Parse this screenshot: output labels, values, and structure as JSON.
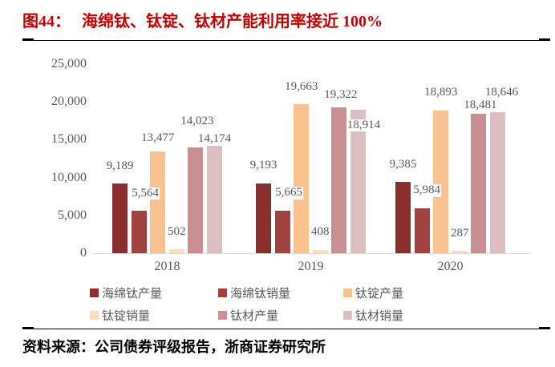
{
  "title": {
    "fig_label": "图44：",
    "text": "海绵钛、钛锭、钛材产能利用率接近 100%",
    "color": "#c00000"
  },
  "source_line": "资料来源：公司债券评级报告，浙商证券研究所",
  "colors": {
    "title_red": "#c00000",
    "axis_text": "#595959",
    "axis_line": "#d9d9d9",
    "rule_black": "#000000"
  },
  "chart_data": {
    "type": "bar",
    "categories": [
      "2018",
      "2019",
      "2020"
    ],
    "series": [
      {
        "name": "海绵钛产量",
        "color": "#8a2e2e",
        "values": [
          9189,
          9193,
          9385
        ]
      },
      {
        "name": "海绵钛销量",
        "color": "#a04240",
        "values": [
          5564,
          5665,
          5984
        ]
      },
      {
        "name": "钛锭产量",
        "color": "#f9c28f",
        "values": [
          13477,
          19663,
          18893
        ]
      },
      {
        "name": "钛锭销量",
        "color": "#fbddbe",
        "values": [
          502,
          408,
          287
        ]
      },
      {
        "name": "钛材产量",
        "color": "#c98f92",
        "values": [
          14023,
          19322,
          18481
        ]
      },
      {
        "name": "钛材销量",
        "color": "#dbbfc3",
        "values": [
          14174,
          18914,
          18646
        ]
      }
    ],
    "ylim": [
      0,
      25000
    ],
    "ytick_interval": 5000,
    "ytick_labels": [
      "0",
      "5,000",
      "10,000",
      "15,000",
      "20,000",
      "25,000"
    ],
    "grid": false,
    "data_labels": true,
    "legend_position": "bottom",
    "label_offsets": [
      [
        [
          0,
          0
        ],
        [
          8,
          0
        ],
        [
          0,
          -6
        ],
        [
          0,
          0
        ],
        [
          2,
          10
        ],
        [
          0,
          -14
        ]
      ],
      [
        [
          0,
          0
        ],
        [
          8,
          0
        ],
        [
          0,
          0
        ],
        [
          0,
          0
        ],
        [
          2,
          -7
        ],
        [
          7,
          -41
        ]
      ],
      [
        [
          0,
          0
        ],
        [
          6,
          0
        ],
        [
          0,
          0
        ],
        [
          0,
          0
        ],
        [
          2,
          -12
        ],
        [
          5,
          2
        ]
      ]
    ]
  }
}
